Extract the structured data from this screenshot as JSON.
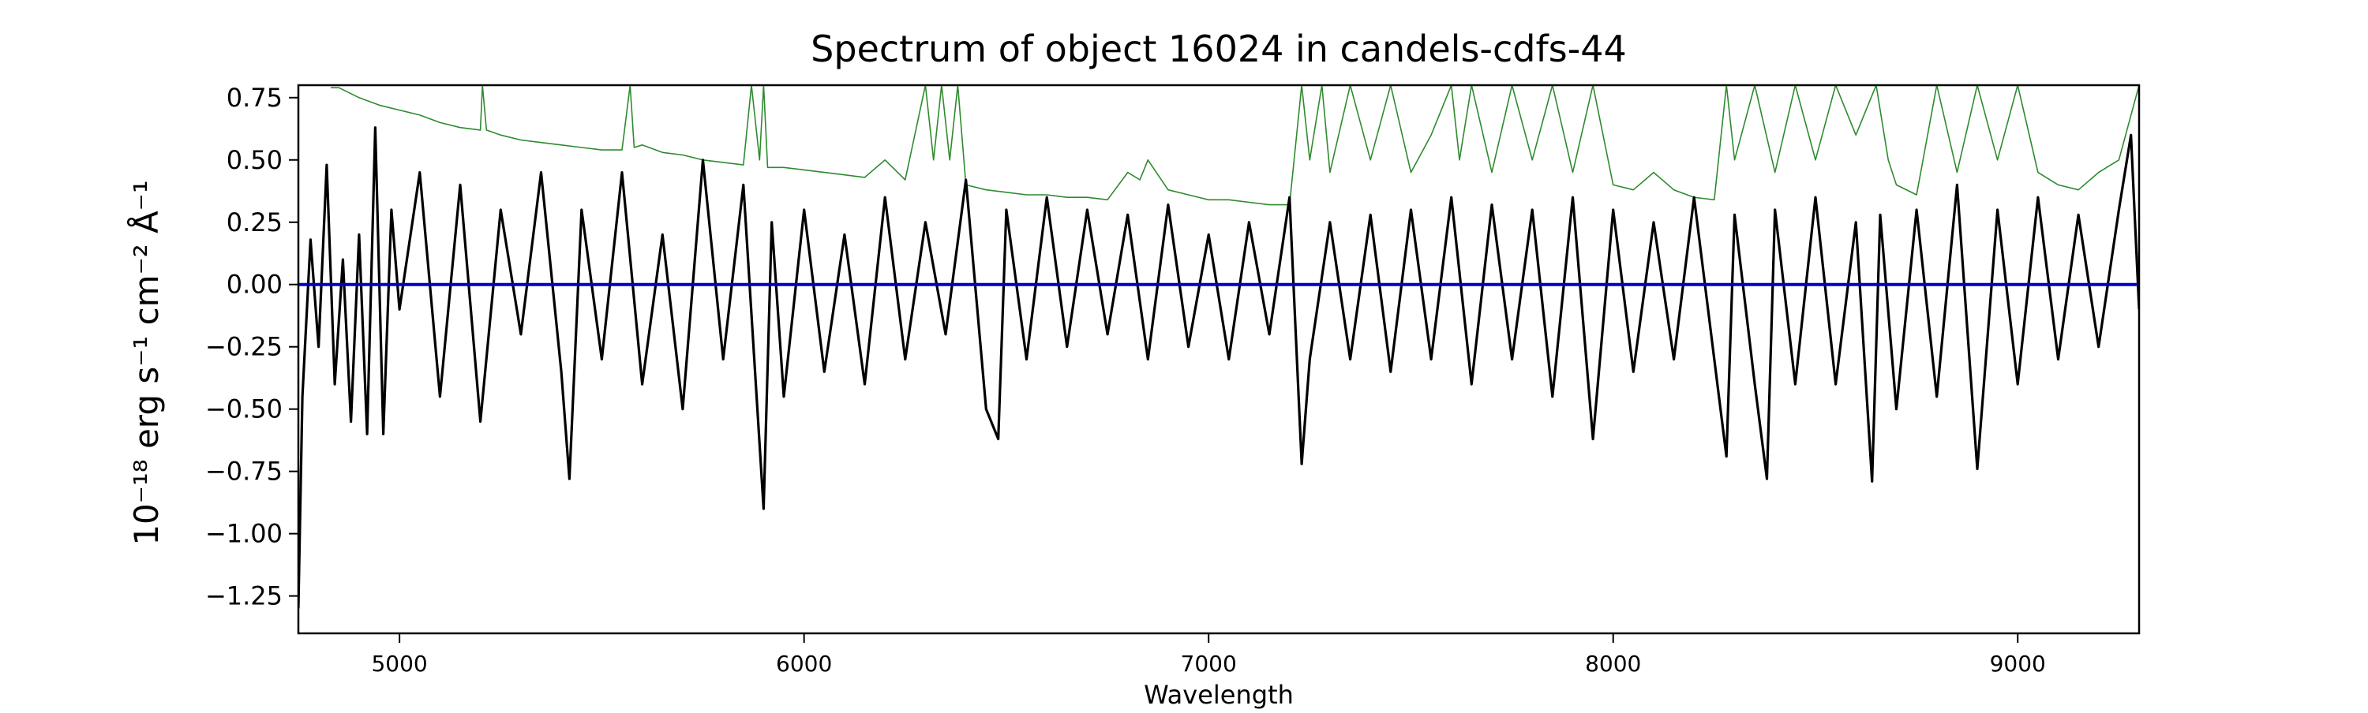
{
  "chart_data": {
    "type": "line",
    "title": "Spectrum of object 16024 in candels-cdfs-44",
    "xlabel": "Wavelength",
    "ylabel": "10⁻¹⁸ erg s⁻¹ cm⁻² Å⁻¹",
    "xlim": [
      4750,
      9300
    ],
    "ylim": [
      -1.4,
      0.8
    ],
    "x_ticks": [
      5000,
      6000,
      7000,
      8000,
      9000
    ],
    "y_ticks": [
      0.75,
      0.5,
      0.25,
      0.0,
      -0.25,
      -0.5,
      -0.75,
      -1.0,
      -1.25
    ],
    "x_tick_labels": [
      "5000",
      "6000",
      "7000",
      "8000",
      "9000"
    ],
    "y_tick_labels": [
      "0.75",
      "0.50",
      "0.25",
      "0.00",
      "−0.25",
      "−0.50",
      "−0.75",
      "−1.00",
      "−1.25"
    ],
    "grid": false,
    "legend": "none",
    "series": [
      {
        "role": "flux",
        "color": "#000000",
        "x": [
          4750,
          4760,
          4780,
          4800,
          4820,
          4840,
          4860,
          4880,
          4900,
          4920,
          4940,
          4960,
          4980,
          5000,
          5050,
          5100,
          5150,
          5200,
          5250,
          5300,
          5350,
          5400,
          5420,
          5450,
          5500,
          5550,
          5600,
          5650,
          5700,
          5750,
          5800,
          5850,
          5900,
          5920,
          5950,
          6000,
          6050,
          6100,
          6150,
          6200,
          6250,
          6300,
          6350,
          6400,
          6450,
          6480,
          6500,
          6550,
          6600,
          6650,
          6700,
          6750,
          6800,
          6850,
          6900,
          6950,
          7000,
          7050,
          7100,
          7150,
          7200,
          7230,
          7250,
          7300,
          7350,
          7400,
          7450,
          7500,
          7550,
          7600,
          7650,
          7700,
          7750,
          7800,
          7850,
          7900,
          7950,
          8000,
          8050,
          8100,
          8150,
          8200,
          8250,
          8280,
          8300,
          8350,
          8380,
          8400,
          8450,
          8500,
          8550,
          8600,
          8640,
          8660,
          8700,
          8750,
          8800,
          8850,
          8900,
          8950,
          9000,
          9050,
          9100,
          9150,
          9200,
          9250,
          9280,
          9300
        ],
        "y": [
          -1.3,
          -0.45,
          0.18,
          -0.25,
          0.48,
          -0.4,
          0.1,
          -0.55,
          0.2,
          -0.6,
          0.63,
          -0.6,
          0.3,
          -0.1,
          0.45,
          -0.45,
          0.4,
          -0.55,
          0.3,
          -0.2,
          0.45,
          -0.35,
          -0.78,
          0.3,
          -0.3,
          0.45,
          -0.4,
          0.2,
          -0.5,
          0.5,
          -0.3,
          0.4,
          -0.9,
          0.25,
          -0.45,
          0.3,
          -0.35,
          0.2,
          -0.4,
          0.35,
          -0.3,
          0.25,
          -0.2,
          0.42,
          -0.5,
          -0.62,
          0.3,
          -0.3,
          0.35,
          -0.25,
          0.3,
          -0.2,
          0.28,
          -0.3,
          0.32,
          -0.25,
          0.2,
          -0.3,
          0.25,
          -0.2,
          0.35,
          -0.72,
          -0.3,
          0.25,
          -0.3,
          0.28,
          -0.35,
          0.3,
          -0.3,
          0.35,
          -0.4,
          0.32,
          -0.3,
          0.3,
          -0.45,
          0.35,
          -0.62,
          0.3,
          -0.35,
          0.25,
          -0.3,
          0.35,
          -0.3,
          -0.69,
          0.28,
          -0.4,
          -0.78,
          0.3,
          -0.4,
          0.35,
          -0.4,
          0.25,
          -0.79,
          0.28,
          -0.5,
          0.3,
          -0.45,
          0.4,
          -0.74,
          0.3,
          -0.4,
          0.35,
          -0.3,
          0.28,
          -0.25,
          0.3,
          0.6,
          -0.1
        ]
      },
      {
        "role": "sky",
        "color": "#2e8b2e",
        "x": [
          4830,
          4850,
          4900,
          4950,
          5000,
          5050,
          5100,
          5150,
          5200,
          5205,
          5215,
          5250,
          5300,
          5350,
          5400,
          5450,
          5500,
          5550,
          5570,
          5580,
          5600,
          5650,
          5700,
          5750,
          5800,
          5850,
          5870,
          5890,
          5900,
          5910,
          5950,
          6000,
          6050,
          6100,
          6150,
          6200,
          6250,
          6300,
          6320,
          6340,
          6360,
          6380,
          6400,
          6450,
          6500,
          6550,
          6600,
          6650,
          6700,
          6750,
          6800,
          6830,
          6850,
          6900,
          6950,
          7000,
          7050,
          7100,
          7150,
          7200,
          7230,
          7250,
          7280,
          7300,
          7350,
          7400,
          7450,
          7500,
          7550,
          7600,
          7620,
          7650,
          7700,
          7750,
          7800,
          7850,
          7900,
          7950,
          8000,
          8050,
          8100,
          8150,
          8200,
          8250,
          8280,
          8300,
          8350,
          8400,
          8450,
          8500,
          8550,
          8600,
          8650,
          8680,
          8700,
          8750,
          8800,
          8850,
          8900,
          8950,
          9000,
          9050,
          9100,
          9150,
          9200,
          9250,
          9300
        ],
        "y": [
          0.79,
          0.79,
          0.75,
          0.72,
          0.7,
          0.68,
          0.65,
          0.63,
          0.62,
          0.8,
          0.62,
          0.6,
          0.58,
          0.57,
          0.56,
          0.55,
          0.54,
          0.54,
          0.8,
          0.55,
          0.56,
          0.53,
          0.52,
          0.5,
          0.49,
          0.48,
          0.8,
          0.5,
          0.8,
          0.47,
          0.47,
          0.46,
          0.45,
          0.44,
          0.43,
          0.5,
          0.42,
          0.8,
          0.5,
          0.8,
          0.5,
          0.8,
          0.4,
          0.38,
          0.37,
          0.36,
          0.36,
          0.35,
          0.35,
          0.34,
          0.45,
          0.42,
          0.5,
          0.38,
          0.36,
          0.34,
          0.34,
          0.33,
          0.32,
          0.32,
          0.8,
          0.5,
          0.8,
          0.45,
          0.8,
          0.5,
          0.8,
          0.45,
          0.6,
          0.8,
          0.5,
          0.8,
          0.45,
          0.8,
          0.5,
          0.8,
          0.45,
          0.8,
          0.4,
          0.38,
          0.45,
          0.38,
          0.35,
          0.34,
          0.8,
          0.5,
          0.8,
          0.45,
          0.8,
          0.5,
          0.8,
          0.6,
          0.8,
          0.5,
          0.4,
          0.36,
          0.8,
          0.45,
          0.8,
          0.5,
          0.8,
          0.45,
          0.4,
          0.38,
          0.45,
          0.5,
          0.8
        ]
      },
      {
        "role": "zero",
        "color": "#0000cc",
        "x": [
          4750,
          9300
        ],
        "y": [
          0,
          0
        ]
      }
    ]
  }
}
